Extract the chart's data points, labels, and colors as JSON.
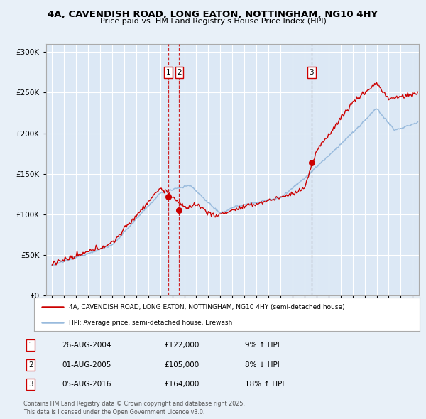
{
  "title_line1": "4A, CAVENDISH ROAD, LONG EATON, NOTTINGHAM, NG10 4HY",
  "title_line2": "Price paid vs. HM Land Registry's House Price Index (HPI)",
  "bg_color": "#e8f0f8",
  "plot_bg_color": "#dce8f5",
  "grid_color": "#ffffff",
  "red_color": "#cc0000",
  "blue_color": "#99bbdd",
  "sale_dates_year": [
    2004.65,
    2005.58,
    2016.58
  ],
  "sale_prices": [
    122000,
    105000,
    164000
  ],
  "sale_labels": [
    "1",
    "2",
    "3"
  ],
  "vline_colors": [
    "#cc0000",
    "#cc0000",
    "#888888"
  ],
  "vline_styles": [
    "--",
    "--",
    "--"
  ],
  "legend_label_red": "4A, CAVENDISH ROAD, LONG EATON, NOTTINGHAM, NG10 4HY (semi-detached house)",
  "legend_label_blue": "HPI: Average price, semi-detached house, Erewash",
  "table_data": [
    [
      "1",
      "26-AUG-2004",
      "£122,000",
      "9% ↑ HPI"
    ],
    [
      "2",
      "01-AUG-2005",
      "£105,000",
      "8% ↓ HPI"
    ],
    [
      "3",
      "05-AUG-2016",
      "£164,000",
      "18% ↑ HPI"
    ]
  ],
  "footer_text": "Contains HM Land Registry data © Crown copyright and database right 2025.\nThis data is licensed under the Open Government Licence v3.0.",
  "ylim": [
    0,
    310000
  ],
  "yticks": [
    0,
    50000,
    100000,
    150000,
    200000,
    250000,
    300000
  ],
  "xlim": [
    1994.5,
    2025.5
  ]
}
